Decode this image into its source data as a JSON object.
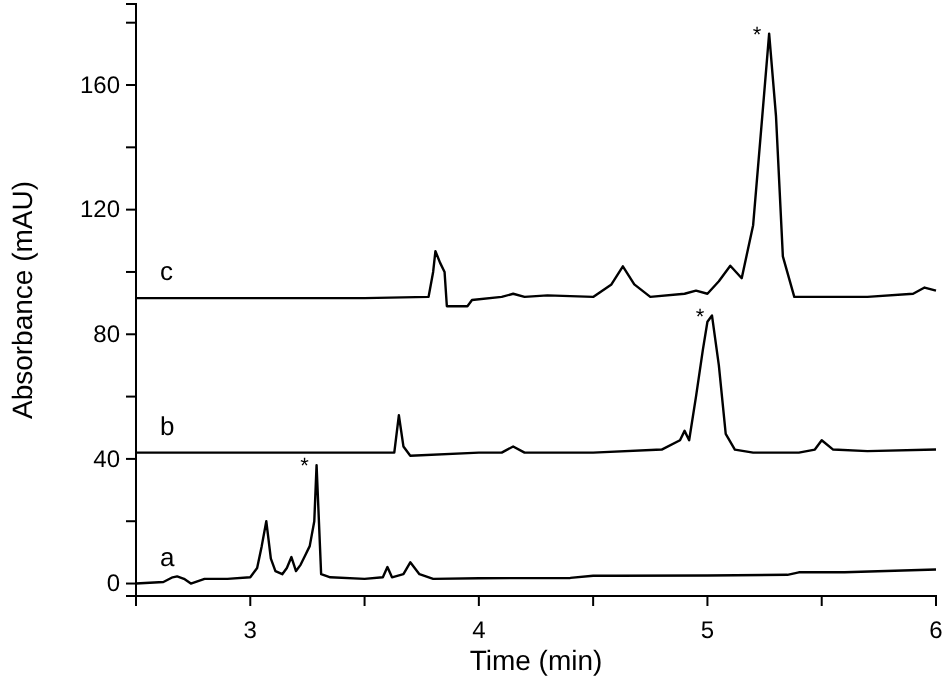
{
  "chart_data": {
    "type": "line",
    "xlabel": "Time (min)",
    "ylabel": "Absorbance (mAU)",
    "xlim": [
      2.5,
      6
    ],
    "ylim": [
      -4,
      186
    ],
    "xticks": [
      {
        "value": 2.5,
        "label": null
      },
      3,
      {
        "value": 3.5,
        "label": null
      },
      4,
      {
        "value": 4.5,
        "label": null
      },
      5,
      {
        "value": 5.5,
        "label": null
      },
      6
    ],
    "yticks": [
      0,
      {
        "value": 20,
        "label": null
      },
      40,
      {
        "value": 60,
        "label": null
      },
      80,
      {
        "value": 100,
        "label": null
      },
      120,
      {
        "value": 140,
        "label": null
      },
      160,
      {
        "value": 180,
        "label": null
      }
    ],
    "grid": false,
    "legend": false,
    "marker": "none",
    "line_style": "solid",
    "series": [
      {
        "name": "a",
        "color": "#000000",
        "x": [
          2.5,
          2.62,
          2.66,
          2.68,
          2.71,
          2.74,
          2.8,
          2.9,
          3.0,
          3.03,
          3.05,
          3.07,
          3.09,
          3.11,
          3.14,
          3.16,
          3.18,
          3.2,
          3.22,
          3.24,
          3.26,
          3.28,
          3.29,
          3.31,
          3.35,
          3.5,
          3.58,
          3.6,
          3.62,
          3.67,
          3.7,
          3.74,
          3.8,
          4.0,
          4.4,
          4.5,
          4.6,
          5.0,
          5.35,
          5.4,
          5.6,
          6.0
        ],
        "values": [
          0,
          0.5,
          2,
          2.3,
          1.5,
          0,
          1.5,
          1.5,
          2,
          5,
          12,
          20,
          8,
          4,
          3,
          5,
          8.5,
          4,
          6,
          9,
          12,
          20,
          38,
          3,
          2,
          1.5,
          2,
          5.3,
          2,
          3,
          6.8,
          3,
          1.5,
          1.7,
          1.8,
          2.5,
          2.5,
          2.6,
          2.8,
          3.6,
          3.6,
          4.5
        ]
      },
      {
        "name": "b",
        "color": "#000000",
        "x": [
          2.5,
          3.0,
          3.5,
          3.63,
          3.65,
          3.67,
          3.7,
          4.0,
          4.1,
          4.15,
          4.2,
          4.5,
          4.8,
          4.88,
          4.9,
          4.92,
          4.95,
          4.98,
          5.0,
          5.02,
          5.05,
          5.08,
          5.12,
          5.2,
          5.4,
          5.47,
          5.5,
          5.55,
          5.7,
          6.0
        ],
        "values": [
          42,
          42,
          42,
          42,
          54,
          44,
          41,
          42,
          42,
          44,
          42,
          42,
          43,
          46,
          49,
          46,
          60,
          75,
          84,
          86,
          70,
          48,
          43,
          42,
          42,
          43,
          46,
          43,
          42.5,
          43
        ]
      },
      {
        "name": "c",
        "color": "#000000",
        "x": [
          2.5,
          3.0,
          3.5,
          3.78,
          3.8,
          3.81,
          3.83,
          3.85,
          3.86,
          3.95,
          3.97,
          4.1,
          4.15,
          4.2,
          4.3,
          4.5,
          4.58,
          4.63,
          4.68,
          4.75,
          4.9,
          4.95,
          5.0,
          5.05,
          5.1,
          5.15,
          5.2,
          5.24,
          5.27,
          5.3,
          5.33,
          5.38,
          5.5,
          5.7,
          5.9,
          5.95,
          6.0
        ],
        "values": [
          91.6,
          91.6,
          91.6,
          92,
          100,
          106.7,
          103,
          100,
          89,
          89,
          91,
          92,
          93,
          92,
          92.5,
          92,
          96,
          101.8,
          96,
          92,
          93,
          94,
          93,
          97,
          102,
          98,
          115,
          150,
          176.5,
          150,
          105,
          92,
          92,
          92,
          93,
          95,
          94
        ]
      }
    ],
    "annotations": [
      {
        "text": "*",
        "x": 3.29,
        "y": 38
      },
      {
        "text": "*",
        "x": 5.02,
        "y": 86
      },
      {
        "text": "*",
        "x": 5.27,
        "y": 176.5
      }
    ]
  }
}
